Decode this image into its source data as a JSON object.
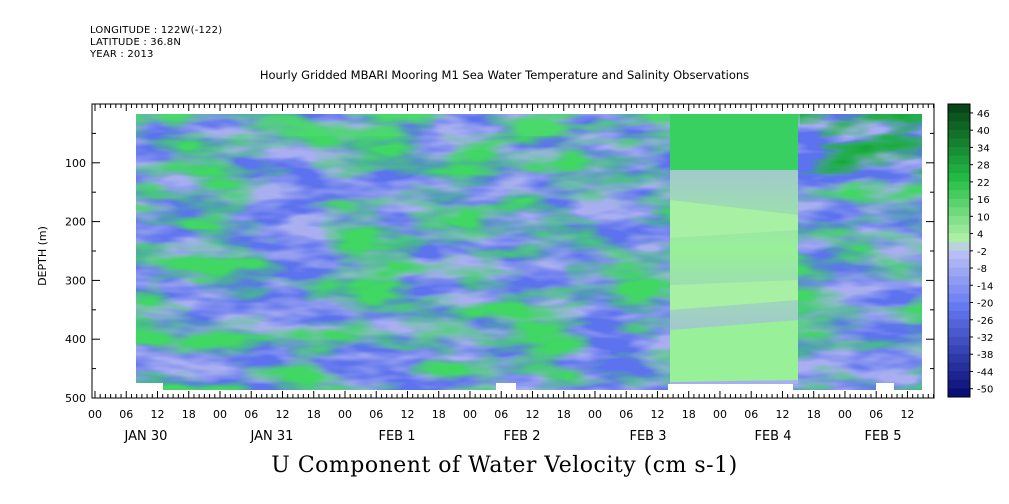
{
  "header": {
    "longitude": "LONGITUDE : 122W(-122)",
    "latitude": "LATITUDE : 36.8N",
    "year": "YEAR : 2013"
  },
  "chart_data": {
    "type": "heatmap",
    "title": "Hourly Gridded MBARI Mooring M1 Sea Water Temperature and Salinity Observations",
    "xlabel": "U Component of Water Velocity (cm s-1)",
    "ylabel": "DEPTH (m)",
    "ylim": [
      500,
      0
    ],
    "y_ticks": [
      100,
      200,
      300,
      400,
      500
    ],
    "x_hour_ticks": [
      "00",
      "06",
      "12",
      "18",
      "00",
      "06",
      "12",
      "18",
      "00",
      "06",
      "12",
      "18",
      "00",
      "06",
      "12",
      "18",
      "00",
      "06",
      "12",
      "18",
      "00",
      "06",
      "12",
      "18",
      "00",
      "06",
      "12"
    ],
    "x_day_labels": [
      "JAN 30",
      "JAN 31",
      "FEB  1",
      "FEB  2",
      "FEB  3",
      "FEB  4",
      "FEB  5"
    ],
    "colorbar_ticks": [
      "46",
      "40",
      "34",
      "28",
      "22",
      "16",
      "10",
      "4",
      "-2",
      "-8",
      "-14",
      "-20",
      "-26",
      "-32",
      "-38",
      "-44",
      "-50"
    ],
    "colorbar_range": [
      -50,
      52
    ],
    "colors": {
      "strong_positive": "#0a5c1c",
      "positive": "#2ecc4f",
      "near_zero": "#a9f0a0",
      "weak_negative": "#a8aef0",
      "negative": "#5a6cf0",
      "strong_negative": "#0a1c8c"
    },
    "data_coverage": {
      "start": "JAN 30 06",
      "end": "FEB 5 18",
      "depth_min_m": 20,
      "depth_max_m": 480
    },
    "grid": false
  }
}
